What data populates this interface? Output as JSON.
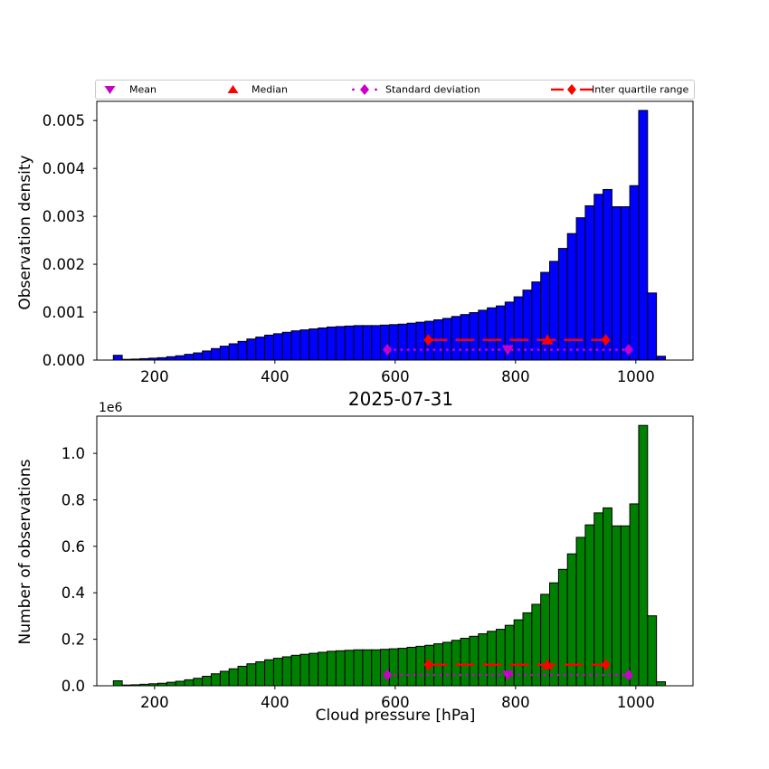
{
  "figure": {
    "background": "#ffffff"
  },
  "legend": {
    "items": [
      {
        "label": "Mean",
        "marker": "triangle-down",
        "color": "#C800C8"
      },
      {
        "label": "Median",
        "marker": "triangle-up",
        "color": "#FF0000"
      },
      {
        "label": "Standard deviation",
        "marker": "diamond-with-dotted-line",
        "color": "#C800C8"
      },
      {
        "label": "Inter quartile range",
        "marker": "diamond-with-dashed-line",
        "color": "#FF0000"
      }
    ]
  },
  "chart_data": [
    {
      "type": "bar",
      "subtype": "histogram",
      "position": "top",
      "ylabel": "Observation density",
      "bar_color": "#0000FF",
      "edge_color": "#000000",
      "bin_start": 131.5,
      "bin_width": 14.8,
      "xlim": [
        104,
        1095
      ],
      "ylim": [
        0,
        0.0054
      ],
      "xticks": [
        200,
        400,
        600,
        800,
        1000
      ],
      "xtick_labels": [
        "200",
        "400",
        "600",
        "800",
        "1000"
      ],
      "ytick_values": [
        0,
        0.001,
        0.002,
        0.003,
        0.004,
        0.005
      ],
      "ytick_labels": [
        "0.000",
        "0.001",
        "0.002",
        "0.003",
        "0.004",
        "0.005"
      ],
      "values": [
        0.0001,
        1.5e-05,
        2e-05,
        3e-05,
        4e-05,
        5e-05,
        7e-05,
        9e-05,
        0.00012,
        0.00015,
        0.00019,
        0.00024,
        0.00029,
        0.00034,
        0.00039,
        0.00044,
        0.00048,
        0.00052,
        0.00055,
        0.00058,
        0.00061,
        0.00063,
        0.00065,
        0.00067,
        0.00069,
        0.0007,
        0.00071,
        0.00072,
        0.00072,
        0.00072,
        0.00073,
        0.00074,
        0.00075,
        0.00077,
        0.00079,
        0.00081,
        0.00084,
        0.00087,
        0.00091,
        0.00095,
        0.00099,
        0.00104,
        0.00109,
        0.00113,
        0.00121,
        0.00132,
        0.00146,
        0.00163,
        0.00183,
        0.00206,
        0.00233,
        0.00264,
        0.00297,
        0.00322,
        0.00346,
        0.00356,
        0.0032,
        0.0032,
        0.00364,
        0.00521,
        0.0014,
        8e-05
      ],
      "stats": {
        "mean": 787,
        "median": 853,
        "std_low": 587,
        "std_high": 988,
        "iqr_low": 655,
        "iqr_high": 950
      }
    },
    {
      "type": "bar",
      "subtype": "histogram",
      "position": "bottom",
      "title": "2025-07-31",
      "xlabel": "Cloud pressure [hPa]",
      "ylabel": "Number of observations",
      "y_offset_label": "1e6",
      "bar_color": "#008000",
      "edge_color": "#000000",
      "bin_start": 131.5,
      "bin_width": 14.8,
      "xlim": [
        104,
        1095
      ],
      "ylim": [
        0,
        1.16
      ],
      "xticks": [
        200,
        400,
        600,
        800,
        1000
      ],
      "xtick_labels": [
        "200",
        "400",
        "600",
        "800",
        "1000"
      ],
      "ytick_values": [
        0,
        0.2,
        0.4,
        0.6,
        0.8,
        1.0
      ],
      "ytick_labels": [
        "0.0",
        "0.2",
        "0.4",
        "0.6",
        "0.8",
        "1.0"
      ],
      "values": [
        0.0215,
        0.0032,
        0.0043,
        0.0065,
        0.0086,
        0.0108,
        0.0151,
        0.0194,
        0.0258,
        0.0323,
        0.0409,
        0.0516,
        0.0624,
        0.0731,
        0.0839,
        0.0946,
        0.1032,
        0.1118,
        0.1183,
        0.1247,
        0.1312,
        0.1355,
        0.1398,
        0.1441,
        0.1484,
        0.1505,
        0.1527,
        0.1548,
        0.1548,
        0.1548,
        0.157,
        0.1591,
        0.1613,
        0.1656,
        0.1699,
        0.1742,
        0.1806,
        0.1871,
        0.1957,
        0.2043,
        0.2129,
        0.2236,
        0.2344,
        0.243,
        0.2602,
        0.2838,
        0.3139,
        0.3505,
        0.3935,
        0.4429,
        0.501,
        0.5676,
        0.6386,
        0.6923,
        0.7439,
        0.7654,
        0.688,
        0.688,
        0.7826,
        1.1202,
        0.301,
        0.0172
      ],
      "stats": {
        "mean": 787,
        "median": 853,
        "std_low": 587,
        "std_high": 988,
        "iqr_low": 655,
        "iqr_high": 950
      }
    }
  ]
}
